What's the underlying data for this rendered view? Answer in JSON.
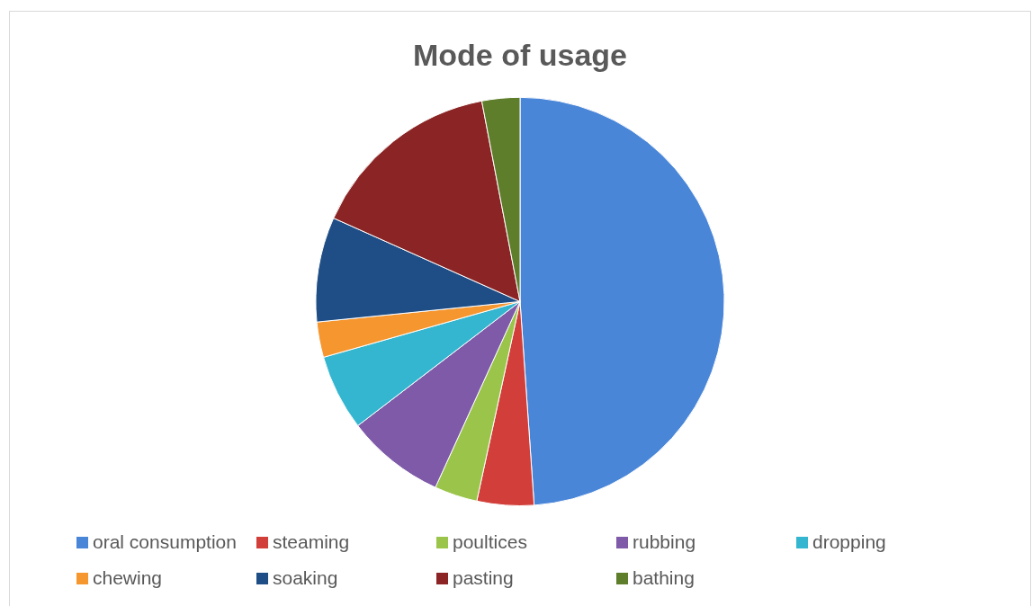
{
  "chart_data": {
    "type": "pie",
    "title": "Mode of usage",
    "categories": [
      "oral consumption",
      "steaming",
      "poultices",
      "rubbing",
      "dropping",
      "chewing",
      "soaking",
      "pasting",
      "bathing"
    ],
    "values": [
      48.9,
      4.5,
      3.4,
      7.8,
      6,
      2.8,
      8.3,
      15.3,
      3
    ],
    "colors": [
      "#4a86d8",
      "#d23f3a",
      "#9bc54a",
      "#7e5aa8",
      "#35b6d0",
      "#f6962f",
      "#1f4e86",
      "#8b2525",
      "#5e7e2b"
    ],
    "legend": "bottom"
  }
}
